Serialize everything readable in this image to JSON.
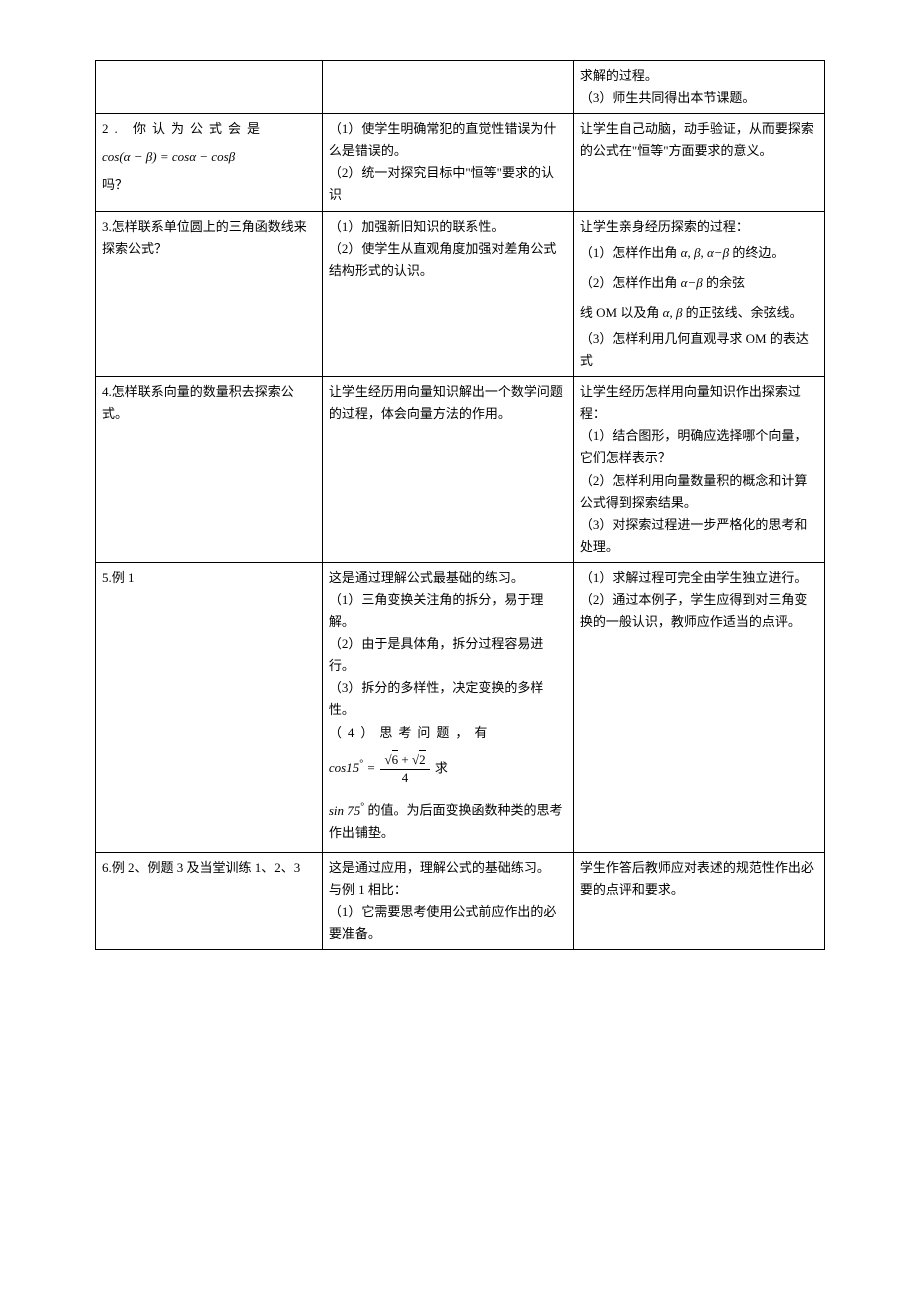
{
  "rows": [
    {
      "col1": [],
      "col2": [],
      "col3": [
        "求解的过程。",
        "（3）师生共同得出本节课题。"
      ]
    },
    {
      "col1": [
        {
          "kind": "spaced",
          "text": "2. 你认为公式会是"
        },
        {
          "kind": "formula",
          "text": "cos(α−β)=cosα−cosβ"
        },
        {
          "kind": "plain",
          "text": "吗？"
        }
      ],
      "col2": [
        "（1）使学生明确常犯的直觉性错误为什么是错误的。",
        "（2）统一对探究目标中\"恒等\"要求的认识"
      ],
      "col3": [
        "让学生自己动脑，动手验证，从而要探索的公式在\"恒等\"方面要求的意义。"
      ]
    },
    {
      "col1": [
        "3.怎样联系单位圆上的三角函数线来探索公式？"
      ],
      "col2": [
        "（1）加强新旧知识的联系性。",
        "（2）使学生从直观角度加强对差角公式结构形式的认识。"
      ],
      "col3": [
        "让学生亲身经历探索的过程：",
        {
          "kind": "mixed",
          "parts": [
            "（1）怎样作出角 ",
            {
              "m": "α"
            },
            ", ",
            {
              "m": "β"
            },
            ", ",
            {
              "m": "α−β"
            },
            " 的终边。"
          ]
        },
        {
          "kind": "mixed",
          "parts": [
            "（2）怎样作出角 ",
            {
              "m": "α−β"
            },
            " 的余弦"
          ]
        },
        {
          "kind": "mixed",
          "parts": [
            "线 OM 以及角 ",
            {
              "m": "α"
            },
            ", ",
            {
              "m": "β"
            },
            " 的正弦线、余弦线。"
          ]
        },
        "（3）怎样利用几何直观寻求 OM 的表达式"
      ]
    },
    {
      "col1": [
        "4.怎样联系向量的数量积去探索公式。"
      ],
      "col2": [
        "让学生经历用向量知识解出一个数学问题的过程，体会向量方法的作用。"
      ],
      "col3": [
        "让学生经历怎样用向量知识作出探索过程：",
        "（1）结合图形，明确应选择哪个向量，它们怎样表示？",
        "（2）怎样利用向量数量积的概念和计算公式得到探索结果。",
        "（3）对探索过程进一步严格化的思考和处理。"
      ]
    },
    {
      "col1": [
        "5.例 1"
      ],
      "col2": [
        "这是通过理解公式最基础的练习。",
        "（1）三角变换关注角的拆分，易于理解。",
        "（2）由于是具体角，拆分过程容易进行。",
        "（3）拆分的多样性，决定变换的多样性。",
        {
          "kind": "spaced",
          "text": "（4）思考问题，有"
        },
        {
          "kind": "cos15",
          "lhs": "cos15",
          "eq": "=",
          "num_a": "6",
          "num_b": "2",
          "den": "4",
          "tail": " 求"
        },
        {
          "kind": "sin75",
          "text": "sin 75",
          "after": "的值。为后面变换函数种类的思考作出铺垫。"
        }
      ],
      "col3": [
        "（1）求解过程可完全由学生独立进行。",
        "（2）通过本例子，学生应得到对三角变换的一般认识，教师应作适当的点评。"
      ]
    },
    {
      "col1": [
        "6.例 2、例题 3 及当堂训练 1、2、3"
      ],
      "col2": [
        "这是通过应用，理解公式的基础练习。",
        "与例 1 相比：",
        "（1）它需要思考使用公式前应作出的必要准备。"
      ],
      "col3": [
        "学生作答后教师应对表述的规范性作出必要的点评和要求。"
      ]
    }
  ]
}
